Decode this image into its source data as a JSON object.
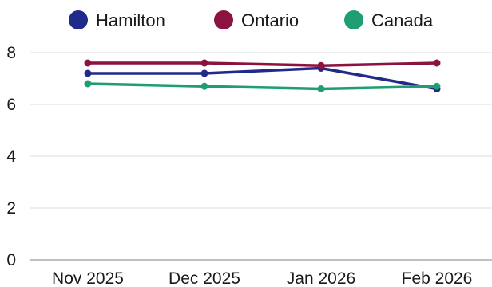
{
  "chart_data": {
    "type": "line",
    "categories": [
      "Nov 2025",
      "Dec 2025",
      "Jan 2026",
      "Feb 2026"
    ],
    "series": [
      {
        "name": "Hamilton",
        "color": "#1f2a8a",
        "values": [
          7.2,
          7.2,
          7.4,
          6.6
        ]
      },
      {
        "name": "Ontario",
        "color": "#8c1240",
        "values": [
          7.6,
          7.6,
          7.5,
          7.6
        ]
      },
      {
        "name": "Canada",
        "color": "#1f9e74",
        "values": [
          6.8,
          6.7,
          6.6,
          6.7
        ]
      }
    ],
    "title": "",
    "xlabel": "",
    "ylabel": "",
    "ylim": [
      0,
      8
    ],
    "yticks": [
      "0",
      "2",
      "4",
      "6",
      "8"
    ],
    "grid": true,
    "legend_position": "top"
  }
}
